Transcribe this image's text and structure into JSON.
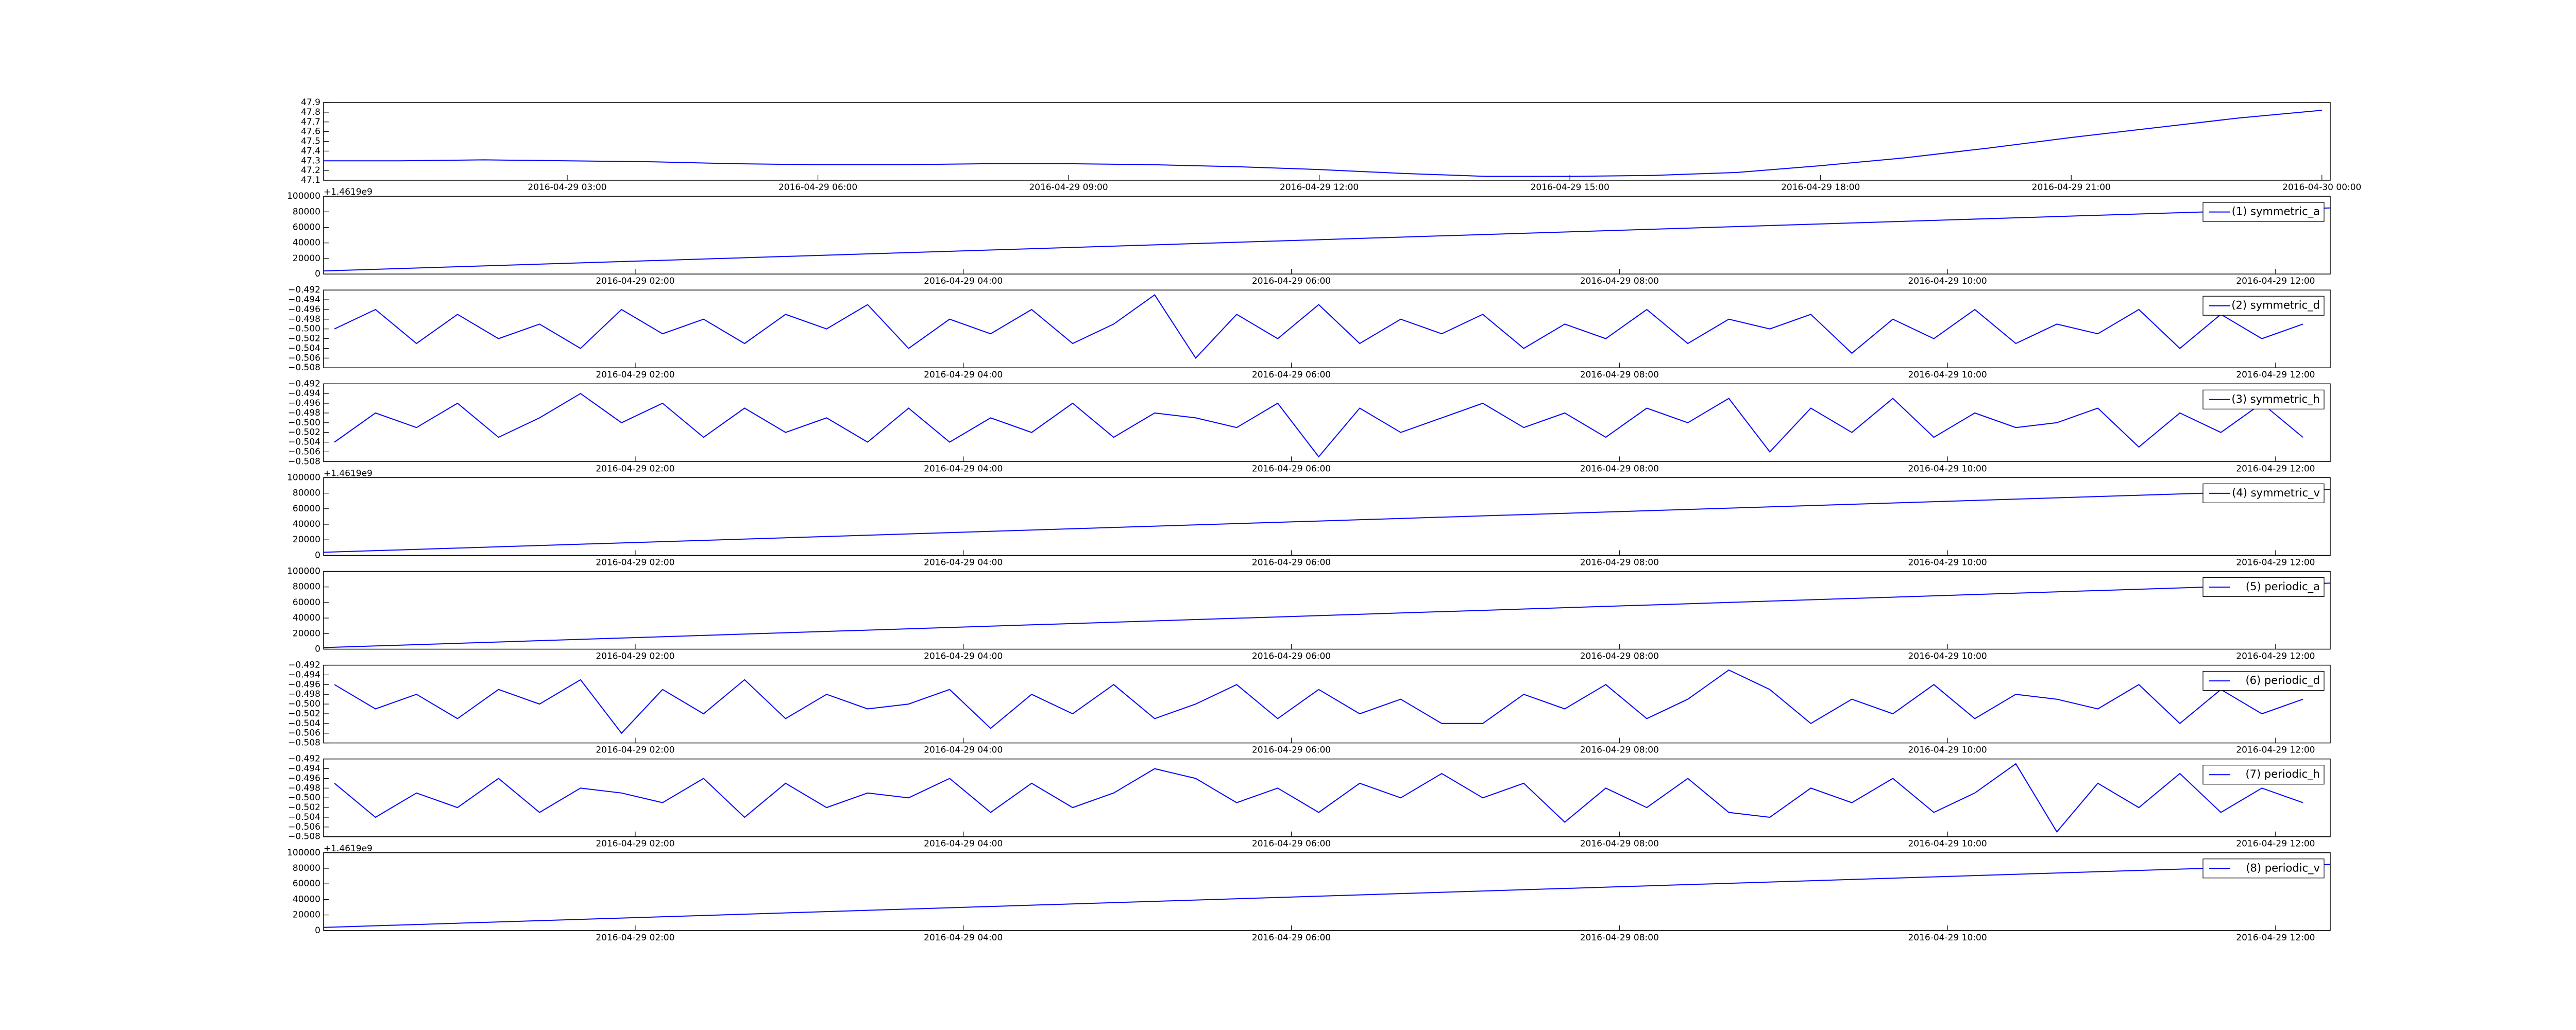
{
  "chart_data": [
    {
      "type": "line",
      "color": "#0000ff",
      "x": [
        "2016-04-29 00:05",
        "2016-04-29 01:00",
        "2016-04-29 02:00",
        "2016-04-29 03:00",
        "2016-04-29 04:00",
        "2016-04-29 05:00",
        "2016-04-29 06:00",
        "2016-04-29 07:00",
        "2016-04-29 08:00",
        "2016-04-29 09:00",
        "2016-04-29 10:00",
        "2016-04-29 11:00",
        "2016-04-29 12:00",
        "2016-04-29 13:00",
        "2016-04-29 14:00",
        "2016-04-29 15:00",
        "2016-04-29 16:00",
        "2016-04-29 17:00",
        "2016-04-29 18:00",
        "2016-04-29 19:00",
        "2016-04-29 20:00",
        "2016-04-29 21:00",
        "2016-04-29 22:00",
        "2016-04-29 23:00",
        "2016-04-30 00:00"
      ],
      "values": [
        47.3,
        47.3,
        47.31,
        47.3,
        47.29,
        47.27,
        47.26,
        47.26,
        47.27,
        47.27,
        47.26,
        47.24,
        47.21,
        47.17,
        47.14,
        47.14,
        47.15,
        47.18,
        47.25,
        47.33,
        47.43,
        47.54,
        47.64,
        47.74,
        47.82
      ],
      "xlim": [
        "2016-04-29 00:05",
        "2016-04-30 00:06"
      ],
      "xticks": [
        "2016-04-29 03:00",
        "2016-04-29 06:00",
        "2016-04-29 09:00",
        "2016-04-29 12:00",
        "2016-04-29 15:00",
        "2016-04-29 18:00",
        "2016-04-29 21:00",
        "2016-04-30 00:00"
      ],
      "ylim": [
        47.1,
        47.9
      ],
      "yticks": [
        47.1,
        47.2,
        47.3,
        47.4,
        47.5,
        47.6,
        47.7,
        47.8,
        47.9
      ]
    },
    {
      "type": "line",
      "legend": "upper right",
      "y_offset_text": "+1.4619e9",
      "x": [
        "2016-04-29 00:06",
        "2016-04-29 12:20"
      ],
      "series": [
        {
          "name": "(1) symmetric_a",
          "color": "#0000ff",
          "values": [
            4000,
            85000
          ]
        }
      ],
      "xlim": [
        "2016-04-29 00:06",
        "2016-04-29 12:20"
      ],
      "xticks": [
        "2016-04-29 02:00",
        "2016-04-29 04:00",
        "2016-04-29 06:00",
        "2016-04-29 08:00",
        "2016-04-29 10:00",
        "2016-04-29 12:00"
      ],
      "ylim": [
        0,
        100000
      ],
      "yticks": [
        0,
        20000,
        40000,
        60000,
        80000,
        100000
      ]
    },
    {
      "type": "line",
      "legend": "upper right",
      "x": [
        "2016-04-29 00:10",
        "2016-04-29 00:25",
        "2016-04-29 00:40",
        "2016-04-29 00:55",
        "2016-04-29 01:10",
        "2016-04-29 01:25",
        "2016-04-29 01:40",
        "2016-04-29 01:55",
        "2016-04-29 02:10",
        "2016-04-29 02:25",
        "2016-04-29 02:40",
        "2016-04-29 02:55",
        "2016-04-29 03:10",
        "2016-04-29 03:25",
        "2016-04-29 03:40",
        "2016-04-29 03:55",
        "2016-04-29 04:10",
        "2016-04-29 04:25",
        "2016-04-29 04:40",
        "2016-04-29 04:55",
        "2016-04-29 05:10",
        "2016-04-29 05:25",
        "2016-04-29 05:40",
        "2016-04-29 05:55",
        "2016-04-29 06:10",
        "2016-04-29 06:25",
        "2016-04-29 06:40",
        "2016-04-29 06:55",
        "2016-04-29 07:10",
        "2016-04-29 07:25",
        "2016-04-29 07:40",
        "2016-04-29 07:55",
        "2016-04-29 08:10",
        "2016-04-29 08:25",
        "2016-04-29 08:40",
        "2016-04-29 08:55",
        "2016-04-29 09:10",
        "2016-04-29 09:25",
        "2016-04-29 09:40",
        "2016-04-29 09:55",
        "2016-04-29 10:10",
        "2016-04-29 10:25",
        "2016-04-29 10:40",
        "2016-04-29 10:55",
        "2016-04-29 11:10",
        "2016-04-29 11:25",
        "2016-04-29 11:40",
        "2016-04-29 11:55",
        "2016-04-29 12:10"
      ],
      "series": [
        {
          "name": "(2) symmetric_d",
          "color": "#0000ff",
          "values": [
            -0.5,
            -0.496,
            -0.503,
            -0.497,
            -0.502,
            -0.499,
            -0.504,
            -0.496,
            -0.501,
            -0.498,
            -0.503,
            -0.497,
            -0.5,
            -0.495,
            -0.504,
            -0.498,
            -0.501,
            -0.496,
            -0.503,
            -0.499,
            -0.493,
            -0.506,
            -0.497,
            -0.502,
            -0.495,
            -0.503,
            -0.498,
            -0.501,
            -0.497,
            -0.504,
            -0.499,
            -0.502,
            -0.496,
            -0.503,
            -0.498,
            -0.5,
            -0.497,
            -0.505,
            -0.498,
            -0.502,
            -0.496,
            -0.503,
            -0.499,
            -0.501,
            -0.496,
            -0.504,
            -0.497,
            -0.502,
            -0.499
          ]
        }
      ],
      "xlim": [
        "2016-04-29 00:06",
        "2016-04-29 12:20"
      ],
      "xticks": [
        "2016-04-29 02:00",
        "2016-04-29 04:00",
        "2016-04-29 06:00",
        "2016-04-29 08:00",
        "2016-04-29 10:00",
        "2016-04-29 12:00"
      ],
      "ylim": [
        -0.508,
        -0.492
      ],
      "yticks": [
        {
          "value": -0.508,
          "label": "−0.508"
        },
        {
          "value": -0.506,
          "label": "−0.506"
        },
        {
          "value": -0.504,
          "label": "−0.504"
        },
        {
          "value": -0.502,
          "label": "−0.502"
        },
        {
          "value": -0.5,
          "label": "−0.500"
        },
        {
          "value": -0.498,
          "label": "−0.498"
        },
        {
          "value": -0.496,
          "label": "−0.496"
        },
        {
          "value": -0.494,
          "label": "−0.494"
        },
        {
          "value": -0.492,
          "label": "−0.492"
        }
      ]
    },
    {
      "type": "line",
      "legend": "upper right",
      "x": [
        "2016-04-29 00:10",
        "2016-04-29 00:25",
        "2016-04-29 00:40",
        "2016-04-29 00:55",
        "2016-04-29 01:10",
        "2016-04-29 01:25",
        "2016-04-29 01:40",
        "2016-04-29 01:55",
        "2016-04-29 02:10",
        "2016-04-29 02:25",
        "2016-04-29 02:40",
        "2016-04-29 02:55",
        "2016-04-29 03:10",
        "2016-04-29 03:25",
        "2016-04-29 03:40",
        "2016-04-29 03:55",
        "2016-04-29 04:10",
        "2016-04-29 04:25",
        "2016-04-29 04:40",
        "2016-04-29 04:55",
        "2016-04-29 05:10",
        "2016-04-29 05:25",
        "2016-04-29 05:40",
        "2016-04-29 05:55",
        "2016-04-29 06:10",
        "2016-04-29 06:25",
        "2016-04-29 06:40",
        "2016-04-29 06:55",
        "2016-04-29 07:10",
        "2016-04-29 07:25",
        "2016-04-29 07:40",
        "2016-04-29 07:55",
        "2016-04-29 08:10",
        "2016-04-29 08:25",
        "2016-04-29 08:40",
        "2016-04-29 08:55",
        "2016-04-29 09:10",
        "2016-04-29 09:25",
        "2016-04-29 09:40",
        "2016-04-29 09:55",
        "2016-04-29 10:10",
        "2016-04-29 10:25",
        "2016-04-29 10:40",
        "2016-04-29 10:55",
        "2016-04-29 11:10",
        "2016-04-29 11:25",
        "2016-04-29 11:40",
        "2016-04-29 11:55",
        "2016-04-29 12:10"
      ],
      "series": [
        {
          "name": "(3) symmetric_h",
          "color": "#0000ff",
          "values": [
            -0.504,
            -0.498,
            -0.501,
            -0.496,
            -0.503,
            -0.499,
            -0.494,
            -0.5,
            -0.496,
            -0.503,
            -0.497,
            -0.502,
            -0.499,
            -0.504,
            -0.497,
            -0.504,
            -0.499,
            -0.502,
            -0.496,
            -0.503,
            -0.498,
            -0.499,
            -0.501,
            -0.496,
            -0.507,
            -0.497,
            -0.502,
            -0.499,
            -0.496,
            -0.501,
            -0.498,
            -0.503,
            -0.497,
            -0.5,
            -0.495,
            -0.506,
            -0.497,
            -0.502,
            -0.495,
            -0.503,
            -0.498,
            -0.501,
            -0.5,
            -0.497,
            -0.505,
            -0.498,
            -0.502,
            -0.496,
            -0.503
          ]
        }
      ],
      "xlim": [
        "2016-04-29 00:06",
        "2016-04-29 12:20"
      ],
      "xticks": [
        "2016-04-29 02:00",
        "2016-04-29 04:00",
        "2016-04-29 06:00",
        "2016-04-29 08:00",
        "2016-04-29 10:00",
        "2016-04-29 12:00"
      ],
      "ylim": [
        -0.508,
        -0.492
      ],
      "yticks": [
        {
          "value": -0.508,
          "label": "−0.508"
        },
        {
          "value": -0.506,
          "label": "−0.506"
        },
        {
          "value": -0.504,
          "label": "−0.504"
        },
        {
          "value": -0.502,
          "label": "−0.502"
        },
        {
          "value": -0.5,
          "label": "−0.500"
        },
        {
          "value": -0.498,
          "label": "−0.498"
        },
        {
          "value": -0.496,
          "label": "−0.496"
        },
        {
          "value": -0.494,
          "label": "−0.494"
        },
        {
          "value": -0.492,
          "label": "−0.492"
        }
      ]
    },
    {
      "type": "line",
      "legend": "upper right",
      "y_offset_text": "+1.4619e9",
      "x": [
        "2016-04-29 00:06",
        "2016-04-29 12:20"
      ],
      "series": [
        {
          "name": "(4) symmetric_v",
          "color": "#0000ff",
          "values": [
            4000,
            85000
          ]
        }
      ],
      "xlim": [
        "2016-04-29 00:06",
        "2016-04-29 12:20"
      ],
      "xticks": [
        "2016-04-29 02:00",
        "2016-04-29 04:00",
        "2016-04-29 06:00",
        "2016-04-29 08:00",
        "2016-04-29 10:00",
        "2016-04-29 12:00"
      ],
      "ylim": [
        0,
        100000
      ],
      "yticks": [
        0,
        20000,
        40000,
        60000,
        80000,
        100000
      ]
    },
    {
      "type": "line",
      "legend": "upper right",
      "x": [
        "2016-04-29 00:06",
        "2016-04-29 12:20"
      ],
      "series": [
        {
          "name": "(5) periodic_a",
          "color": "#0000ff",
          "values": [
            2000,
            85000
          ]
        }
      ],
      "xlim": [
        "2016-04-29 00:06",
        "2016-04-29 12:20"
      ],
      "xticks": [
        "2016-04-29 02:00",
        "2016-04-29 04:00",
        "2016-04-29 06:00",
        "2016-04-29 08:00",
        "2016-04-29 10:00",
        "2016-04-29 12:00"
      ],
      "ylim": [
        0,
        100000
      ],
      "yticks": [
        0,
        20000,
        40000,
        60000,
        80000,
        100000
      ]
    },
    {
      "type": "line",
      "legend": "upper right",
      "x": [
        "2016-04-29 00:10",
        "2016-04-29 00:25",
        "2016-04-29 00:40",
        "2016-04-29 00:55",
        "2016-04-29 01:10",
        "2016-04-29 01:25",
        "2016-04-29 01:40",
        "2016-04-29 01:55",
        "2016-04-29 02:10",
        "2016-04-29 02:25",
        "2016-04-29 02:40",
        "2016-04-29 02:55",
        "2016-04-29 03:10",
        "2016-04-29 03:25",
        "2016-04-29 03:40",
        "2016-04-29 03:55",
        "2016-04-29 04:10",
        "2016-04-29 04:25",
        "2016-04-29 04:40",
        "2016-04-29 04:55",
        "2016-04-29 05:10",
        "2016-04-29 05:25",
        "2016-04-29 05:40",
        "2016-04-29 05:55",
        "2016-04-29 06:10",
        "2016-04-29 06:25",
        "2016-04-29 06:40",
        "2016-04-29 06:55",
        "2016-04-29 07:10",
        "2016-04-29 07:25",
        "2016-04-29 07:40",
        "2016-04-29 07:55",
        "2016-04-29 08:10",
        "2016-04-29 08:25",
        "2016-04-29 08:40",
        "2016-04-29 08:55",
        "2016-04-29 09:10",
        "2016-04-29 09:25",
        "2016-04-29 09:40",
        "2016-04-29 09:55",
        "2016-04-29 10:10",
        "2016-04-29 10:25",
        "2016-04-29 10:40",
        "2016-04-29 10:55",
        "2016-04-29 11:10",
        "2016-04-29 11:25",
        "2016-04-29 11:40",
        "2016-04-29 11:55",
        "2016-04-29 12:10"
      ],
      "series": [
        {
          "name": "(6) periodic_d",
          "color": "#0000ff",
          "values": [
            -0.496,
            -0.501,
            -0.498,
            -0.503,
            -0.497,
            -0.5,
            -0.495,
            -0.506,
            -0.497,
            -0.502,
            -0.495,
            -0.503,
            -0.498,
            -0.501,
            -0.5,
            -0.497,
            -0.505,
            -0.498,
            -0.502,
            -0.496,
            -0.503,
            -0.5,
            -0.496,
            -0.503,
            -0.497,
            -0.502,
            -0.499,
            -0.504,
            -0.504,
            -0.498,
            -0.501,
            -0.496,
            -0.503,
            -0.499,
            -0.493,
            -0.497,
            -0.504,
            -0.499,
            -0.502,
            -0.496,
            -0.503,
            -0.498,
            -0.499,
            -0.501,
            -0.496,
            -0.504,
            -0.497,
            -0.502,
            -0.499
          ]
        }
      ],
      "xlim": [
        "2016-04-29 00:06",
        "2016-04-29 12:20"
      ],
      "xticks": [
        "2016-04-29 02:00",
        "2016-04-29 04:00",
        "2016-04-29 06:00",
        "2016-04-29 08:00",
        "2016-04-29 10:00",
        "2016-04-29 12:00"
      ],
      "ylim": [
        -0.508,
        -0.492
      ],
      "yticks": [
        {
          "value": -0.508,
          "label": "−0.508"
        },
        {
          "value": -0.506,
          "label": "−0.506"
        },
        {
          "value": -0.504,
          "label": "−0.504"
        },
        {
          "value": -0.502,
          "label": "−0.502"
        },
        {
          "value": -0.5,
          "label": "−0.500"
        },
        {
          "value": -0.498,
          "label": "−0.498"
        },
        {
          "value": -0.496,
          "label": "−0.496"
        },
        {
          "value": -0.494,
          "label": "−0.494"
        },
        {
          "value": -0.492,
          "label": "−0.492"
        }
      ]
    },
    {
      "type": "line",
      "legend": "upper right",
      "x": [
        "2016-04-29 00:10",
        "2016-04-29 00:25",
        "2016-04-29 00:40",
        "2016-04-29 00:55",
        "2016-04-29 01:10",
        "2016-04-29 01:25",
        "2016-04-29 01:40",
        "2016-04-29 01:55",
        "2016-04-29 02:10",
        "2016-04-29 02:25",
        "2016-04-29 02:40",
        "2016-04-29 02:55",
        "2016-04-29 03:10",
        "2016-04-29 03:25",
        "2016-04-29 03:40",
        "2016-04-29 03:55",
        "2016-04-29 04:10",
        "2016-04-29 04:25",
        "2016-04-29 04:40",
        "2016-04-29 04:55",
        "2016-04-29 05:10",
        "2016-04-29 05:25",
        "2016-04-29 05:40",
        "2016-04-29 05:55",
        "2016-04-29 06:10",
        "2016-04-29 06:25",
        "2016-04-29 06:40",
        "2016-04-29 06:55",
        "2016-04-29 07:10",
        "2016-04-29 07:25",
        "2016-04-29 07:40",
        "2016-04-29 07:55",
        "2016-04-29 08:10",
        "2016-04-29 08:25",
        "2016-04-29 08:40",
        "2016-04-29 08:55",
        "2016-04-29 09:10",
        "2016-04-29 09:25",
        "2016-04-29 09:40",
        "2016-04-29 09:55",
        "2016-04-29 10:10",
        "2016-04-29 10:25",
        "2016-04-29 10:40",
        "2016-04-29 10:55",
        "2016-04-29 11:10",
        "2016-04-29 11:25",
        "2016-04-29 11:40",
        "2016-04-29 11:55",
        "2016-04-29 12:10"
      ],
      "series": [
        {
          "name": "(7) periodic_h",
          "color": "#0000ff",
          "values": [
            -0.497,
            -0.504,
            -0.499,
            -0.502,
            -0.496,
            -0.503,
            -0.498,
            -0.499,
            -0.501,
            -0.496,
            -0.504,
            -0.497,
            -0.502,
            -0.499,
            -0.5,
            -0.496,
            -0.503,
            -0.497,
            -0.502,
            -0.499,
            -0.494,
            -0.496,
            -0.501,
            -0.498,
            -0.503,
            -0.497,
            -0.5,
            -0.495,
            -0.5,
            -0.497,
            -0.505,
            -0.498,
            -0.502,
            -0.496,
            -0.503,
            -0.504,
            -0.498,
            -0.501,
            -0.496,
            -0.503,
            -0.499,
            -0.493,
            -0.507,
            -0.497,
            -0.502,
            -0.495,
            -0.503,
            -0.498,
            -0.501
          ]
        }
      ],
      "xlim": [
        "2016-04-29 00:06",
        "2016-04-29 12:20"
      ],
      "xticks": [
        "2016-04-29 02:00",
        "2016-04-29 04:00",
        "2016-04-29 06:00",
        "2016-04-29 08:00",
        "2016-04-29 10:00",
        "2016-04-29 12:00"
      ],
      "ylim": [
        -0.508,
        -0.492
      ],
      "yticks": [
        {
          "value": -0.508,
          "label": "−0.508"
        },
        {
          "value": -0.506,
          "label": "−0.506"
        },
        {
          "value": -0.504,
          "label": "−0.504"
        },
        {
          "value": -0.502,
          "label": "−0.502"
        },
        {
          "value": -0.5,
          "label": "−0.500"
        },
        {
          "value": -0.498,
          "label": "−0.498"
        },
        {
          "value": -0.496,
          "label": "−0.496"
        },
        {
          "value": -0.494,
          "label": "−0.494"
        },
        {
          "value": -0.492,
          "label": "−0.492"
        }
      ]
    },
    {
      "type": "line",
      "legend": "upper right",
      "y_offset_text": "+1.4619e9",
      "x": [
        "2016-04-29 00:06",
        "2016-04-29 12:20"
      ],
      "series": [
        {
          "name": "(8) periodic_v",
          "color": "#0000ff",
          "values": [
            4000,
            85000
          ]
        }
      ],
      "xlim": [
        "2016-04-29 00:06",
        "2016-04-29 12:20"
      ],
      "xticks": [
        "2016-04-29 02:00",
        "2016-04-29 04:00",
        "2016-04-29 06:00",
        "2016-04-29 08:00",
        "2016-04-29 10:00",
        "2016-04-29 12:00"
      ],
      "ylim": [
        0,
        100000
      ],
      "yticks": [
        0,
        20000,
        40000,
        60000,
        80000,
        100000
      ]
    }
  ]
}
